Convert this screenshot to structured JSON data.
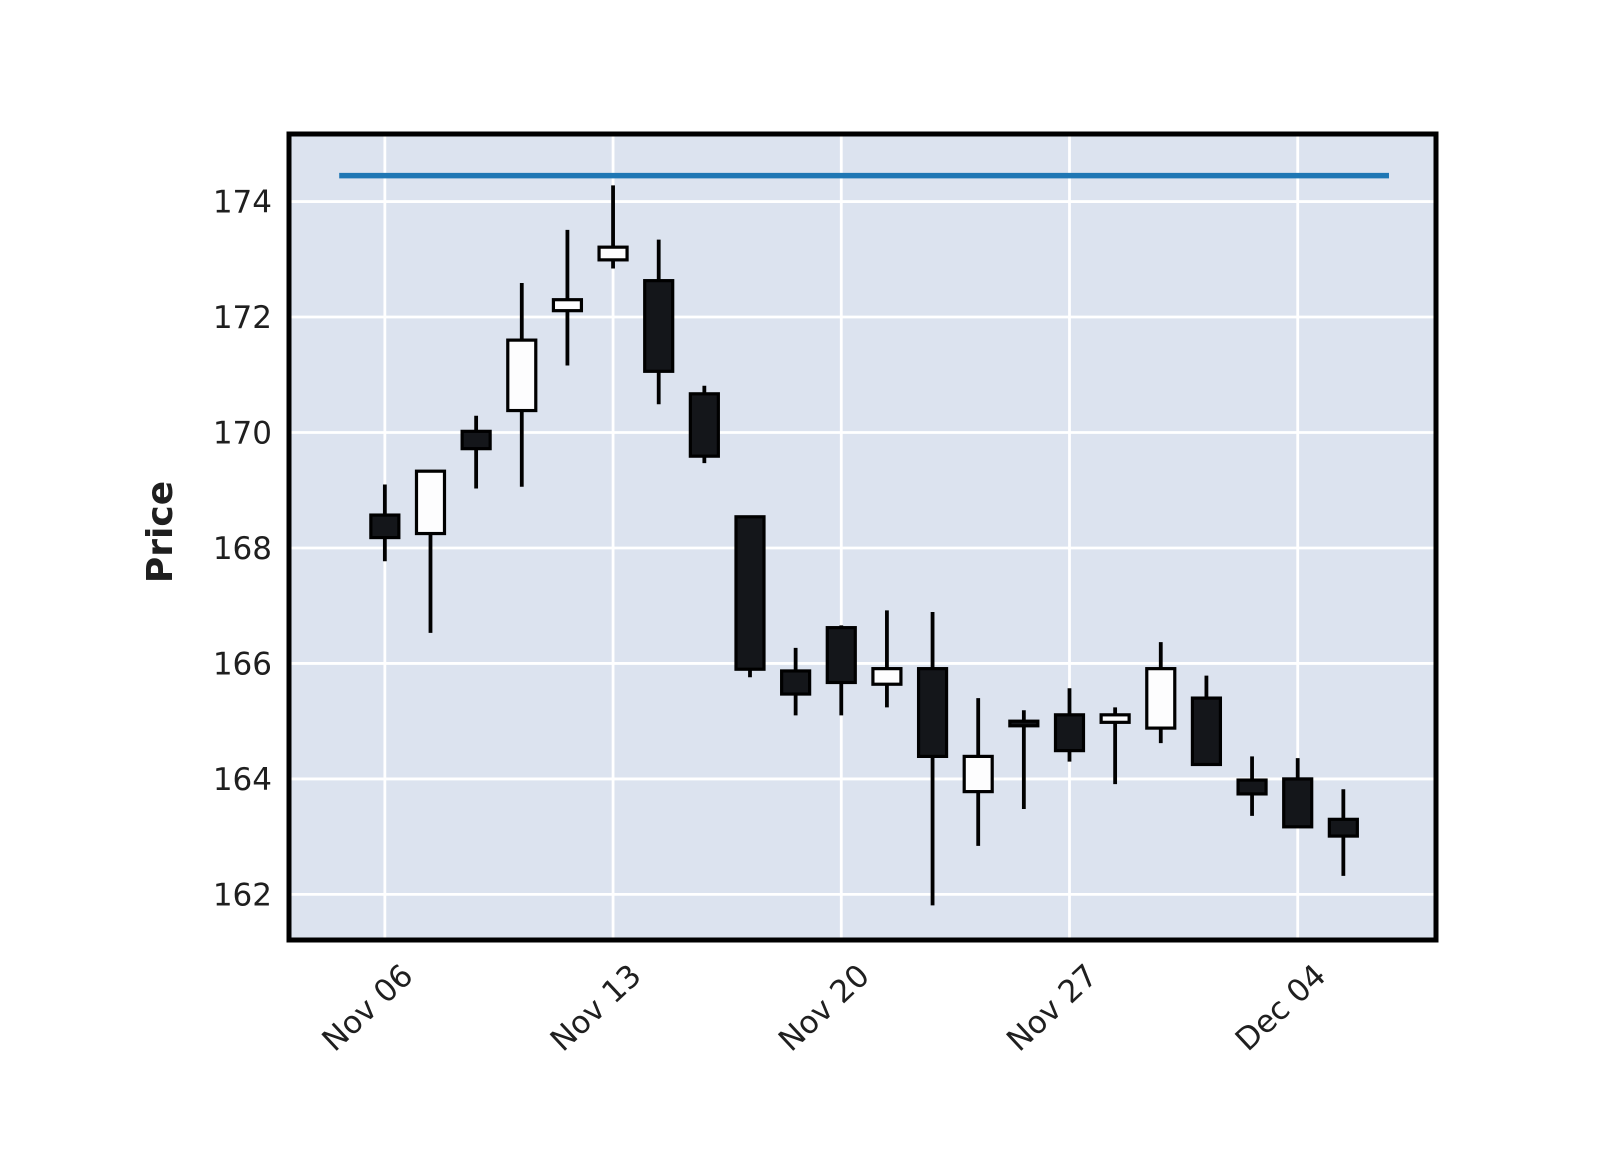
{
  "chart_data": {
    "type": "candlestick",
    "title": "",
    "xlabel": "",
    "ylabel": "Price",
    "grid": true,
    "legend": "none",
    "y_ticks": [
      162,
      164,
      166,
      168,
      170,
      172,
      174
    ],
    "x_ticks": [
      {
        "label": "Nov 06",
        "index": 0
      },
      {
        "label": "Nov 13",
        "index": 5
      },
      {
        "label": "Nov 20",
        "index": 10
      },
      {
        "label": "Nov 27",
        "index": 15
      },
      {
        "label": "Dec 04",
        "index": 20
      }
    ],
    "ylim": [
      161.21,
      175.17
    ],
    "xlim": [
      -2.1,
      23.03
    ],
    "horizontal_line": {
      "price": 174.45,
      "from_index": -1,
      "to_index": 22,
      "color": "#1f77b4"
    },
    "candles": [
      {
        "date": "Nov 06",
        "open": 168.57,
        "high": 169.1,
        "low": 167.77,
        "close": 168.18,
        "direction": "down"
      },
      {
        "date": "Nov 07",
        "open": 168.25,
        "high": 169.33,
        "low": 166.53,
        "close": 169.33,
        "direction": "up"
      },
      {
        "date": "Nov 08",
        "open": 170.02,
        "high": 170.29,
        "low": 169.03,
        "close": 169.72,
        "direction": "down"
      },
      {
        "date": "Nov 09",
        "open": 170.38,
        "high": 172.59,
        "low": 169.06,
        "close": 171.6,
        "direction": "up"
      },
      {
        "date": "Nov 10",
        "open": 172.11,
        "high": 173.51,
        "low": 171.16,
        "close": 172.3,
        "direction": "up"
      },
      {
        "date": "Nov 13",
        "open": 172.99,
        "high": 174.28,
        "low": 172.84,
        "close": 173.21,
        "direction": "up"
      },
      {
        "date": "Nov 14",
        "open": 172.63,
        "high": 173.34,
        "low": 170.49,
        "close": 171.06,
        "direction": "down"
      },
      {
        "date": "Nov 15",
        "open": 170.67,
        "high": 170.81,
        "low": 169.47,
        "close": 169.59,
        "direction": "down"
      },
      {
        "date": "Nov 16",
        "open": 168.54,
        "high": 168.54,
        "low": 165.76,
        "close": 165.9,
        "direction": "down"
      },
      {
        "date": "Nov 17",
        "open": 165.87,
        "high": 166.27,
        "low": 165.1,
        "close": 165.47,
        "direction": "down"
      },
      {
        "date": "Nov 20",
        "open": 166.62,
        "high": 166.66,
        "low": 165.1,
        "close": 165.67,
        "direction": "down"
      },
      {
        "date": "Nov 21",
        "open": 165.64,
        "high": 166.92,
        "low": 165.24,
        "close": 165.91,
        "direction": "up"
      },
      {
        "date": "Nov 22",
        "open": 165.91,
        "high": 166.89,
        "low": 161.81,
        "close": 164.39,
        "direction": "down"
      },
      {
        "date": "Nov 23",
        "open": 163.78,
        "high": 165.4,
        "low": 162.84,
        "close": 164.39,
        "direction": "up"
      },
      {
        "date": "Nov 24",
        "open": 165.0,
        "high": 165.19,
        "low": 163.48,
        "close": 164.92,
        "direction": "down"
      },
      {
        "date": "Nov 27",
        "open": 165.11,
        "high": 165.57,
        "low": 164.3,
        "close": 164.49,
        "direction": "down"
      },
      {
        "date": "Nov 28",
        "open": 164.98,
        "high": 165.24,
        "low": 163.91,
        "close": 165.11,
        "direction": "up"
      },
      {
        "date": "Nov 29",
        "open": 164.88,
        "high": 166.37,
        "low": 164.62,
        "close": 165.91,
        "direction": "up"
      },
      {
        "date": "Nov 30",
        "open": 165.4,
        "high": 165.79,
        "low": 164.25,
        "close": 164.25,
        "direction": "down"
      },
      {
        "date": "Dec 01",
        "open": 163.98,
        "high": 164.39,
        "low": 163.36,
        "close": 163.74,
        "direction": "down"
      },
      {
        "date": "Dec 04",
        "open": 164.0,
        "high": 164.36,
        "low": 163.17,
        "close": 163.17,
        "direction": "down"
      },
      {
        "date": "Dec 05",
        "open": 163.3,
        "high": 163.82,
        "low": 162.32,
        "close": 163.01,
        "direction": "down"
      }
    ],
    "style": {
      "plot_background": "#dce3ef",
      "grid_color": "#ffffff",
      "spine_color": "#000000",
      "up_fill": "#fdfdfe",
      "down_fill": "#14161a",
      "candle_outline": "#000000",
      "wick_color": "#000000",
      "text_color": "#1f1f1f"
    }
  }
}
